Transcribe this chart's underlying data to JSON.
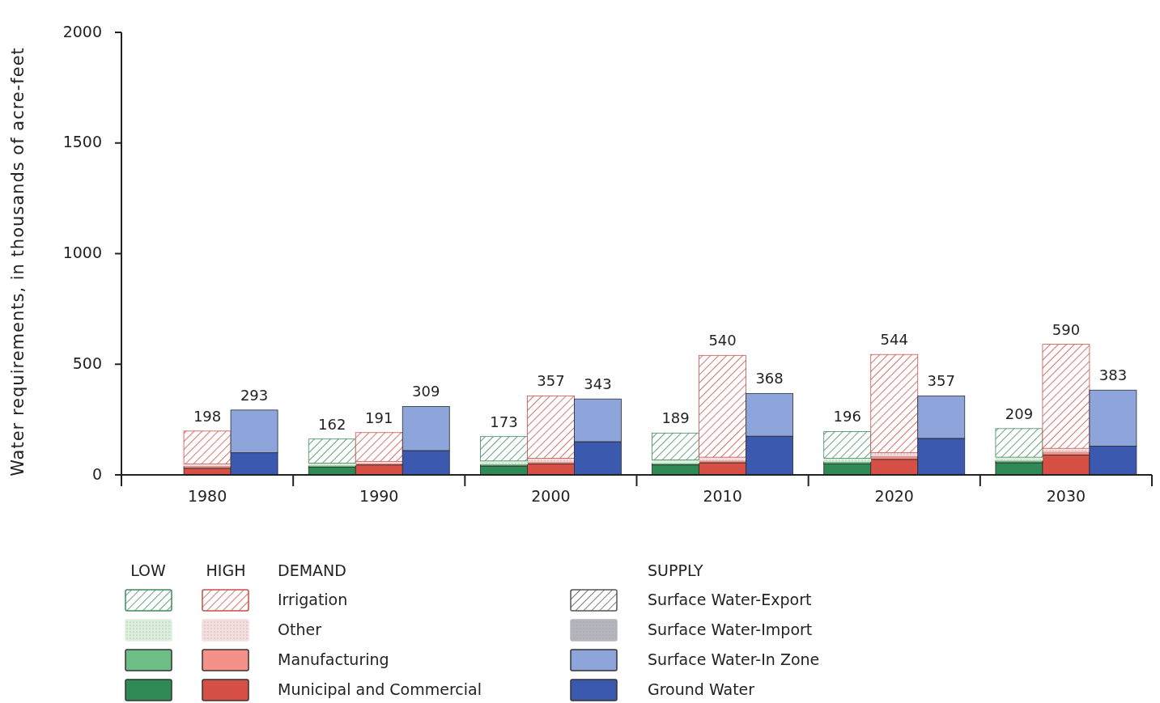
{
  "chart_data": {
    "type": "bar",
    "stacked": true,
    "ylabel": "Water requirements, in thousands of acre-feet",
    "ylim": [
      0,
      2000
    ],
    "yticks": [
      0,
      500,
      1000,
      1500,
      2000
    ],
    "grid": false,
    "legend": "bottom",
    "categories": [
      null,
      "1980",
      null,
      null,
      "1990",
      null,
      null,
      "2000",
      null,
      null,
      "2010",
      null,
      null,
      "2020",
      null,
      null,
      "2030",
      null
    ],
    "series": [
      {
        "name": "Municipal and Commercial",
        "colors": [
          null,
          "#d65046",
          null,
          "#2f8a56",
          "#d65046",
          null,
          "#2f8a56",
          "#d65046",
          null,
          "#2f8a56",
          "#d65046",
          null,
          "#2f8a56",
          "#d65046",
          null,
          "#2f8a56",
          "#d65046",
          null
        ],
        "values": [
          null,
          30,
          null,
          35,
          45,
          null,
          40,
          50,
          null,
          45,
          55,
          null,
          50,
          70,
          null,
          55,
          90,
          null
        ]
      },
      {
        "name": "Manufacturing",
        "colors": [
          null,
          "#f4928a",
          null,
          "#6cbd86",
          "#f4928a",
          null,
          "#6cbd86",
          "#f4928a",
          null,
          "#6cbd86",
          "#f4928a",
          null,
          "#6cbd86",
          "#f4928a",
          null,
          "#6cbd86",
          "#f4928a",
          null
        ],
        "values": [
          null,
          10,
          null,
          8,
          8,
          null,
          8,
          10,
          null,
          8,
          10,
          null,
          10,
          15,
          null,
          10,
          15,
          null
        ]
      },
      {
        "name": "Other",
        "colors": [
          null,
          "#f6dede",
          null,
          "#dcefdc",
          "#f6dede",
          null,
          "#dcefdc",
          "#f6dede",
          null,
          "#dcefdc",
          "#f6dede",
          null,
          "#dcefdc",
          "#f6dede",
          null,
          "#dcefdc",
          "#f6dede",
          null
        ],
        "values": [
          null,
          10,
          null,
          10,
          8,
          null,
          15,
          15,
          null,
          15,
          15,
          null,
          15,
          15,
          null,
          15,
          15,
          null
        ]
      },
      {
        "name": "Irrigation",
        "colors": [
          null,
          "#c8504a",
          null,
          "#3f8a5c",
          "#c8504a",
          null,
          "#3f8a5c",
          "#c8504a",
          null,
          "#3f8a5c",
          "#c8504a",
          null,
          "#3f8a5c",
          "#c8504a",
          null,
          "#3f8a5c",
          "#c8504a",
          null
        ],
        "values": [
          null,
          148,
          null,
          109,
          130,
          null,
          110,
          282,
          null,
          121,
          460,
          null,
          121,
          444,
          null,
          129,
          470,
          null
        ]
      },
      {
        "name": "Ground Water",
        "color": "#3c59b0",
        "values": [
          null,
          null,
          100,
          null,
          null,
          110,
          null,
          null,
          150,
          null,
          null,
          175,
          null,
          null,
          165,
          null,
          null,
          130
        ]
      },
      {
        "name": "Surface Water-In Zone",
        "color": "#8ea5dc",
        "values": [
          null,
          null,
          193,
          null,
          null,
          199,
          null,
          null,
          193,
          null,
          null,
          193,
          null,
          null,
          192,
          null,
          null,
          253
        ]
      },
      {
        "name": "Surface Water-Import",
        "color": "#b4b4bc",
        "values": [
          null,
          null,
          null,
          null,
          null,
          null,
          null,
          null,
          null,
          null,
          null,
          null,
          null,
          null,
          null,
          null,
          null,
          null
        ]
      },
      {
        "name": "Surface Water-Export",
        "color": "#555555",
        "values": [
          null,
          null,
          null,
          null,
          null,
          null,
          null,
          null,
          null,
          null,
          null,
          null,
          null,
          null,
          null,
          null,
          null,
          null
        ]
      }
    ],
    "totals": [
      null,
      "198",
      "293",
      "162",
      "191",
      "309",
      "173",
      "357",
      "343",
      "189",
      "540",
      "368",
      "196",
      "544",
      "357",
      "209",
      "590",
      "383"
    ],
    "annotations": [
      "LOW",
      "HIGH",
      "DEMAND",
      "SUPPLY"
    ]
  }
}
